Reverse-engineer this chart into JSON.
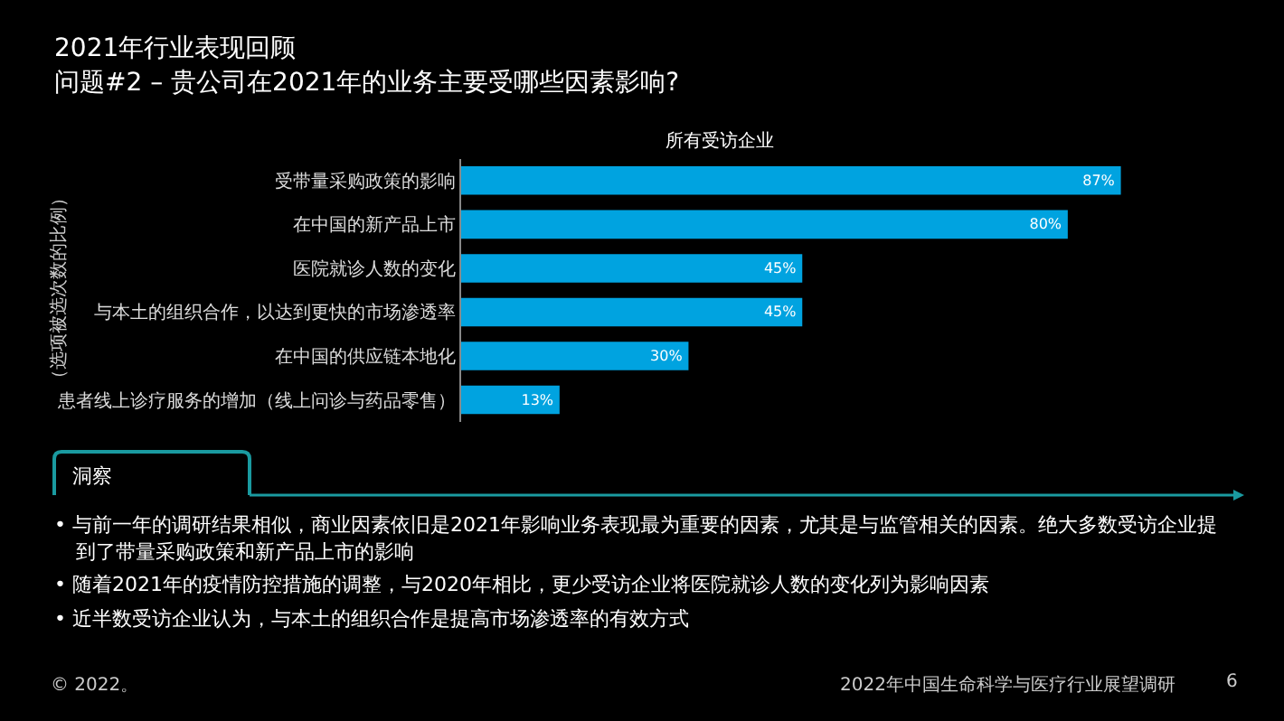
{
  "chart_data": {
    "type": "bar",
    "orientation": "horizontal",
    "title": "2021年行业表现回顾",
    "subtitle": "问题#2 – 贵公司在2021年的业务主要受哪些因素影响?",
    "ylabel": "（选项被选次数的比例）",
    "categories": [
      "受带量采购政策的影响",
      "在中国的新产品上市",
      "医院就诊人数的变化",
      "与本土的组织合作，以达到更快的市场渗透率",
      "在中国的供应链本地化",
      "患者线上诊疗服务的增加（线上问诊与药品零售）"
    ],
    "series": [
      {
        "color": "#00a3e0",
        "values": [
          87,
          80,
          45,
          45,
          30,
          13
        ],
        "value_labels": [
          "87%",
          "80%",
          "45%",
          "45%",
          "30%",
          "13%"
        ]
      }
    ],
    "annotations": [
      "所有受访企业",
      "洞察",
      "• 与前一年的调研结果相似，商业因素依旧是2021年影响业务表现最为重要的因素，尤其是与监管相关的因素。绝大多数受访企业提到了带量采购政策和新产品上市的影响",
      "• 随着2021年的疫情防控措施的调整，与2020年相比，更少受访企业将医院就诊人数的变化列为影响因素",
      "• 近半数受访企业认为，与本土的组织合作是提高市场渗透率的有效方式",
      "© 2022。",
      "2022年中国生命科学与医疗行业展望调研",
      "6"
    ]
  }
}
